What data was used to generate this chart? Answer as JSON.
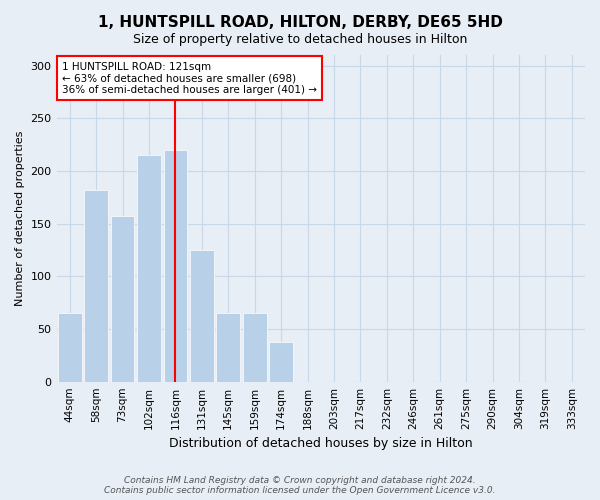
{
  "title_line1": "1, HUNTSPILL ROAD, HILTON, DERBY, DE65 5HD",
  "title_line2": "Size of property relative to detached houses in Hilton",
  "xlabel": "Distribution of detached houses by size in Hilton",
  "ylabel": "Number of detached properties",
  "categories": [
    "44sqm",
    "58sqm",
    "73sqm",
    "102sqm",
    "116sqm",
    "131sqm",
    "145sqm",
    "159sqm",
    "174sqm",
    "188sqm",
    "203sqm",
    "217sqm",
    "232sqm",
    "246sqm",
    "261sqm",
    "275sqm",
    "290sqm",
    "304sqm",
    "319sqm",
    "333sqm"
  ],
  "values": [
    65,
    182,
    157,
    215,
    220,
    125,
    65,
    65,
    38,
    0,
    0,
    0,
    0,
    0,
    0,
    0,
    0,
    0,
    0,
    0
  ],
  "bar_color": "#b8d0e8",
  "grid_color": "#c8d8e8",
  "background_color": "#e8eef5",
  "property_line_x": 4,
  "annotation_text": "1 HUNTSPILL ROAD: 121sqm\n← 63% of detached houses are smaller (698)\n36% of semi-detached houses are larger (401) →",
  "annotation_box_color": "white",
  "annotation_box_edge": "red",
  "ylim": [
    0,
    310
  ],
  "yticks": [
    0,
    50,
    100,
    150,
    200,
    250,
    300
  ],
  "footer": "Contains HM Land Registry data © Crown copyright and database right 2024.\nContains public sector information licensed under the Open Government Licence v3.0."
}
